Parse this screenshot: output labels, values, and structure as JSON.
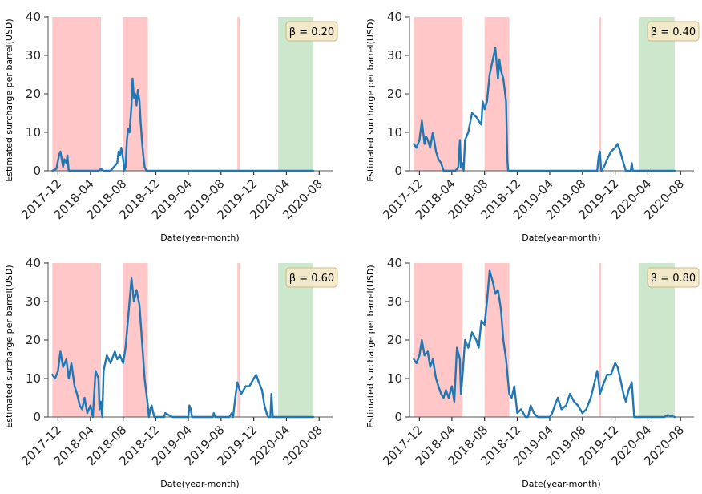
{
  "colors": {
    "line": "#1f77b4",
    "recession_span": "#ff9999",
    "recovery_span": "#8fc98f",
    "badge_bg": "#f5e9c8",
    "badge_border": "#c8b98a",
    "axis": "#555555"
  },
  "chart_data": [
    {
      "type": "line",
      "title": "",
      "xlabel": "Date(year-month)",
      "ylabel": "Estimated surcharge per barrel(USD)",
      "ylim": [
        0,
        40
      ],
      "yticks": [
        0,
        10,
        20,
        30,
        40
      ],
      "xlim": [
        "2017-10-25",
        "2020-09-20"
      ],
      "xticks": [
        "2017-12",
        "2018-04",
        "2018-08",
        "2018-12",
        "2019-04",
        "2019-08",
        "2019-12",
        "2020-04",
        "2020-08"
      ],
      "grid": false,
      "annotation": "β = 0.20",
      "shaded_spans": [
        {
          "kind": "red",
          "start": "2017-11-10",
          "end": "2018-05-10"
        },
        {
          "kind": "red",
          "start": "2018-08-01",
          "end": "2018-11-01"
        },
        {
          "kind": "red",
          "start": "2019-10-01",
          "end": "2019-10-05"
        },
        {
          "kind": "green",
          "start": "2020-03-01",
          "end": "2020-07-10"
        }
      ],
      "series": [
        {
          "x": [
            "2017-11-10",
            "2017-11-25",
            "2017-12-05",
            "2017-12-10",
            "2017-12-15",
            "2017-12-20",
            "2017-12-25",
            "2018-01-01",
            "2018-01-05",
            "2018-01-10",
            "2018-01-20",
            "2018-02-01",
            "2018-03-01",
            "2018-04-01",
            "2018-05-01",
            "2018-05-10",
            "2018-05-20",
            "2018-06-15",
            "2018-07-10",
            "2018-07-15",
            "2018-07-20",
            "2018-07-25",
            "2018-08-01",
            "2018-08-05",
            "2018-08-10",
            "2018-08-15",
            "2018-08-20",
            "2018-08-25",
            "2018-09-01",
            "2018-09-05",
            "2018-09-10",
            "2018-09-15",
            "2018-09-20",
            "2018-09-25",
            "2018-10-01",
            "2018-10-05",
            "2018-10-10",
            "2018-10-15",
            "2018-10-20",
            "2018-10-25",
            "2018-10-28",
            "2018-11-01",
            "2018-11-10",
            "2019-04-01",
            "2019-10-01",
            "2020-04-01",
            "2020-07-10"
          ],
          "y": [
            0,
            0.5,
            4,
            5,
            3,
            1,
            3,
            2,
            4,
            0,
            0,
            0,
            0,
            0,
            0,
            0.5,
            0,
            0,
            2,
            5,
            4,
            6,
            3,
            0,
            1,
            8,
            11,
            10,
            17,
            24,
            19,
            20,
            17,
            21,
            18,
            13,
            8,
            4,
            1,
            0.3,
            0,
            0,
            0,
            0,
            0,
            0,
            0
          ]
        }
      ]
    },
    {
      "type": "line",
      "title": "",
      "xlabel": "Date(year-month)",
      "ylabel": "Estimated surcharge per barrel(USD)",
      "ylim": [
        0,
        40
      ],
      "yticks": [
        0,
        10,
        20,
        30,
        40
      ],
      "xlim": [
        "2017-10-25",
        "2020-09-20"
      ],
      "xticks": [
        "2017-12",
        "2018-04",
        "2018-08",
        "2018-12",
        "2019-04",
        "2019-08",
        "2019-12",
        "2020-04",
        "2020-08"
      ],
      "grid": false,
      "annotation": "β = 0.40",
      "shaded_spans": [
        {
          "kind": "red",
          "start": "2017-11-10",
          "end": "2018-05-10"
        },
        {
          "kind": "red",
          "start": "2018-08-01",
          "end": "2018-11-01"
        },
        {
          "kind": "red",
          "start": "2019-10-01",
          "end": "2019-10-05"
        },
        {
          "kind": "green",
          "start": "2020-03-01",
          "end": "2020-07-10"
        }
      ],
      "series": [
        {
          "x": [
            "2017-11-10",
            "2017-11-20",
            "2017-12-01",
            "2017-12-10",
            "2017-12-20",
            "2017-12-25",
            "2018-01-01",
            "2018-01-10",
            "2018-01-20",
            "2018-02-01",
            "2018-02-10",
            "2018-02-20",
            "2018-03-01",
            "2018-03-15",
            "2018-04-01",
            "2018-04-15",
            "2018-04-25",
            "2018-05-01",
            "2018-05-05",
            "2018-05-10",
            "2018-05-15",
            "2018-05-20",
            "2018-06-01",
            "2018-06-15",
            "2018-07-01",
            "2018-07-10",
            "2018-07-20",
            "2018-07-25",
            "2018-08-01",
            "2018-08-10",
            "2018-08-20",
            "2018-09-01",
            "2018-09-10",
            "2018-09-15",
            "2018-09-20",
            "2018-09-25",
            "2018-10-01",
            "2018-10-10",
            "2018-10-20",
            "2018-10-25",
            "2018-10-28",
            "2018-11-01",
            "2019-03-01",
            "2019-06-01",
            "2019-09-25",
            "2019-10-01",
            "2019-10-05",
            "2019-10-10",
            "2019-10-20",
            "2019-11-01",
            "2019-11-15",
            "2019-12-01",
            "2019-12-10",
            "2019-12-20",
            "2020-01-01",
            "2020-01-10",
            "2020-01-20",
            "2020-01-25",
            "2020-01-28",
            "2020-02-01",
            "2020-02-05",
            "2020-07-10"
          ],
          "y": [
            7,
            6,
            8,
            13,
            7,
            9,
            8,
            6,
            10,
            5,
            3,
            2,
            0,
            0,
            0,
            0,
            1,
            8,
            1,
            2,
            0,
            8,
            10,
            15,
            14,
            13,
            12,
            18,
            16,
            18,
            25,
            29,
            32,
            28,
            24,
            29,
            26,
            24,
            18,
            3,
            0,
            0,
            0,
            0,
            0,
            4,
            5,
            0,
            1,
            3,
            5,
            6,
            7,
            5,
            2,
            0,
            0,
            0,
            0,
            2,
            0,
            0
          ]
        }
      ]
    },
    {
      "type": "line",
      "title": "",
      "xlabel": "Date(year-month)",
      "ylabel": "Estimated surcharge per barrel(USD)",
      "ylim": [
        0,
        40
      ],
      "yticks": [
        0,
        10,
        20,
        30,
        40
      ],
      "xlim": [
        "2017-10-25",
        "2020-09-20"
      ],
      "xticks": [
        "2017-12",
        "2018-04",
        "2018-08",
        "2018-12",
        "2019-04",
        "2019-08",
        "2019-12",
        "2020-04",
        "2020-08"
      ],
      "grid": false,
      "annotation": "β = 0.60",
      "shaded_spans": [
        {
          "kind": "red",
          "start": "2017-11-10",
          "end": "2018-05-10"
        },
        {
          "kind": "red",
          "start": "2018-08-01",
          "end": "2018-11-01"
        },
        {
          "kind": "red",
          "start": "2019-10-01",
          "end": "2019-10-05"
        },
        {
          "kind": "green",
          "start": "2020-03-01",
          "end": "2020-07-10"
        }
      ],
      "series": [
        {
          "x": [
            "2017-11-10",
            "2017-11-20",
            "2017-12-01",
            "2017-12-10",
            "2017-12-20",
            "2018-01-01",
            "2018-01-10",
            "2018-01-20",
            "2018-02-01",
            "2018-02-10",
            "2018-02-20",
            "2018-03-01",
            "2018-03-10",
            "2018-03-20",
            "2018-04-01",
            "2018-04-10",
            "2018-04-20",
            "2018-05-01",
            "2018-05-05",
            "2018-05-10",
            "2018-05-15",
            "2018-05-20",
            "2018-06-01",
            "2018-06-15",
            "2018-07-01",
            "2018-07-10",
            "2018-07-20",
            "2018-08-01",
            "2018-08-10",
            "2018-08-20",
            "2018-09-01",
            "2018-09-10",
            "2018-09-20",
            "2018-10-01",
            "2018-10-10",
            "2018-10-20",
            "2018-11-01",
            "2018-11-05",
            "2018-11-10",
            "2018-11-15",
            "2018-11-25",
            "2018-12-01",
            "2019-01-01",
            "2019-01-05",
            "2019-02-01",
            "2019-04-01",
            "2019-04-05",
            "2019-04-10",
            "2019-04-15",
            "2019-06-01",
            "2019-07-01",
            "2019-07-05",
            "2019-07-10",
            "2019-08-01",
            "2019-09-01",
            "2019-09-10",
            "2019-09-15",
            "2019-09-20",
            "2019-09-25",
            "2019-10-01",
            "2019-10-05",
            "2019-10-15",
            "2019-11-01",
            "2019-11-15",
            "2019-12-01",
            "2019-12-10",
            "2019-12-20",
            "2020-01-01",
            "2020-01-10",
            "2020-01-20",
            "2020-01-25",
            "2020-02-01",
            "2020-02-05",
            "2020-02-10",
            "2020-07-10"
          ],
          "y": [
            11,
            10,
            12,
            17,
            13,
            15,
            10,
            14,
            8,
            6,
            3,
            2,
            5,
            1,
            3,
            0,
            12,
            10,
            2,
            4,
            0,
            12,
            16,
            14,
            17,
            15,
            16,
            14,
            18,
            26,
            36,
            30,
            33,
            29,
            20,
            10,
            3,
            0,
            2,
            3,
            0,
            0,
            0,
            1,
            0,
            0,
            3,
            2,
            0,
            0,
            0,
            1,
            0,
            0,
            0,
            1,
            0,
            3,
            6,
            9,
            8,
            6,
            8,
            8,
            10,
            11,
            9,
            7,
            3,
            0.5,
            0,
            0,
            6,
            0,
            0
          ]
        }
      ]
    },
    {
      "type": "line",
      "title": "",
      "xlabel": "Date(year-month)",
      "ylabel": "Estimated surcharge per barrel(USD)",
      "ylim": [
        0,
        40
      ],
      "yticks": [
        0,
        10,
        20,
        30,
        40
      ],
      "xlim": [
        "2017-10-25",
        "2020-09-20"
      ],
      "xticks": [
        "2017-12",
        "2018-04",
        "2018-08",
        "2018-12",
        "2019-04",
        "2019-08",
        "2019-12",
        "2020-04",
        "2020-08"
      ],
      "grid": false,
      "annotation": "β = 0.80",
      "shaded_spans": [
        {
          "kind": "red",
          "start": "2017-11-10",
          "end": "2018-05-10"
        },
        {
          "kind": "red",
          "start": "2018-08-01",
          "end": "2018-11-01"
        },
        {
          "kind": "red",
          "start": "2019-10-01",
          "end": "2019-10-05"
        },
        {
          "kind": "green",
          "start": "2020-03-01",
          "end": "2020-07-10"
        }
      ],
      "series": [
        {
          "x": [
            "2017-11-10",
            "2017-11-20",
            "2017-12-01",
            "2017-12-10",
            "2017-12-20",
            "2018-01-01",
            "2018-01-10",
            "2018-01-20",
            "2018-02-01",
            "2018-02-10",
            "2018-02-20",
            "2018-03-01",
            "2018-03-10",
            "2018-03-20",
            "2018-04-01",
            "2018-04-10",
            "2018-04-20",
            "2018-05-01",
            "2018-05-05",
            "2018-05-10",
            "2018-05-20",
            "2018-06-01",
            "2018-06-15",
            "2018-07-01",
            "2018-07-10",
            "2018-07-20",
            "2018-08-01",
            "2018-08-10",
            "2018-08-20",
            "2018-09-01",
            "2018-09-10",
            "2018-09-20",
            "2018-10-01",
            "2018-10-10",
            "2018-10-20",
            "2018-11-01",
            "2018-11-10",
            "2018-11-20",
            "2018-12-01",
            "2018-12-15",
            "2019-01-01",
            "2019-01-10",
            "2019-01-20",
            "2019-02-01",
            "2019-02-15",
            "2019-03-01",
            "2019-03-15",
            "2019-04-01",
            "2019-04-10",
            "2019-04-20",
            "2019-05-01",
            "2019-05-15",
            "2019-06-01",
            "2019-06-15",
            "2019-07-01",
            "2019-07-15",
            "2019-08-01",
            "2019-08-15",
            "2019-09-01",
            "2019-09-15",
            "2019-09-25",
            "2019-10-01",
            "2019-10-05",
            "2019-10-15",
            "2019-11-01",
            "2019-11-15",
            "2019-12-01",
            "2019-12-10",
            "2019-12-20",
            "2020-01-01",
            "2020-01-10",
            "2020-01-20",
            "2020-02-01",
            "2020-02-05",
            "2020-02-10",
            "2020-02-15",
            "2020-06-01",
            "2020-06-15",
            "2020-06-25",
            "2020-07-10"
          ],
          "y": [
            15,
            14,
            16,
            20,
            16,
            17,
            13,
            15,
            10,
            8,
            6,
            5,
            7,
            5,
            8,
            4,
            18,
            15,
            6,
            10,
            20,
            18,
            22,
            20,
            18,
            25,
            24,
            30,
            38,
            35,
            32,
            33,
            28,
            20,
            15,
            6,
            5,
            8,
            1,
            2,
            0,
            0,
            3,
            1,
            0,
            0,
            0,
            0,
            1,
            3,
            5,
            2,
            3,
            6,
            4,
            3,
            1,
            2,
            5,
            9,
            12,
            9,
            6,
            8,
            11,
            11,
            14,
            13,
            10,
            6,
            4,
            7,
            9,
            5,
            0,
            0,
            0,
            0.5,
            0.3,
            0
          ]
        }
      ]
    }
  ]
}
